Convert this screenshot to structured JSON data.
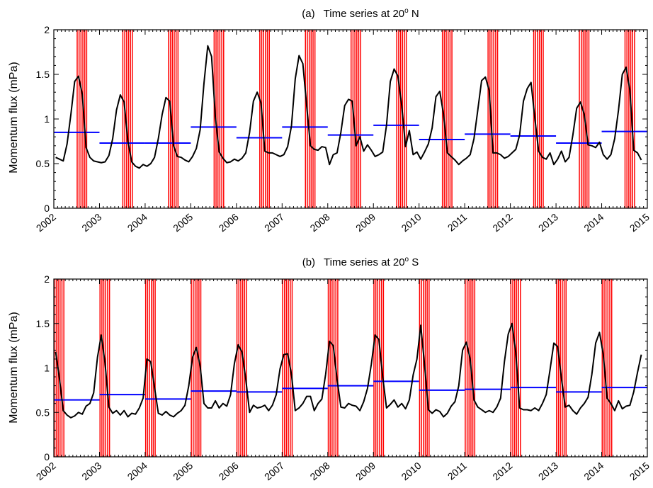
{
  "chart_data": [
    {
      "type": "line",
      "panel": "(a)",
      "title": "Time series at 20",
      "title_sup": "o",
      "title_suffix": " N",
      "xlabel": "",
      "ylabel": "Momentum flux (mPa)",
      "xlim": [
        2002,
        2015
      ],
      "ylim": [
        0,
        2
      ],
      "x_ticks": [
        "2002",
        "2003",
        "2004",
        "2005",
        "2006",
        "2007",
        "2008",
        "2009",
        "2010",
        "2011",
        "2012",
        "2013",
        "2014",
        "2015"
      ],
      "y_ticks": [
        "0",
        "0.5",
        "1",
        "1.5",
        "2"
      ],
      "series": [
        {
          "color": "#000000",
          "x_start": 2002.04,
          "x_step": 0.0833,
          "values": [
            0.57,
            0.55,
            0.53,
            0.72,
            1.05,
            1.42,
            1.48,
            1.28,
            0.68,
            0.57,
            0.53,
            0.52,
            0.51,
            0.52,
            0.59,
            0.78,
            1.1,
            1.27,
            1.19,
            0.75,
            0.52,
            0.47,
            0.45,
            0.49,
            0.47,
            0.5,
            0.57,
            0.78,
            1.05,
            1.24,
            1.2,
            0.7,
            0.58,
            0.57,
            0.54,
            0.52,
            0.58,
            0.67,
            0.88,
            1.4,
            1.82,
            1.7,
            1.02,
            0.63,
            0.56,
            0.51,
            0.52,
            0.55,
            0.53,
            0.56,
            0.62,
            0.85,
            1.2,
            1.3,
            1.18,
            0.64,
            0.62,
            0.62,
            0.6,
            0.58,
            0.6,
            0.69,
            0.92,
            1.45,
            1.71,
            1.62,
            1.15,
            0.7,
            0.66,
            0.65,
            0.69,
            0.68,
            0.49,
            0.6,
            0.62,
            0.85,
            1.15,
            1.22,
            1.2,
            0.7,
            0.8,
            0.64,
            0.71,
            0.65,
            0.58,
            0.6,
            0.63,
            0.93,
            1.42,
            1.56,
            1.48,
            1.15,
            0.69,
            0.87,
            0.6,
            0.63,
            0.55,
            0.63,
            0.72,
            0.9,
            1.25,
            1.31,
            1.05,
            0.62,
            0.58,
            0.54,
            0.49,
            0.53,
            0.56,
            0.6,
            0.78,
            1.1,
            1.43,
            1.47,
            1.32,
            0.62,
            0.62,
            0.6,
            0.56,
            0.58,
            0.62,
            0.66,
            0.82,
            1.2,
            1.34,
            1.41,
            1.01,
            0.64,
            0.57,
            0.55,
            0.62,
            0.49,
            0.55,
            0.64,
            0.52,
            0.57,
            0.82,
            1.12,
            1.19,
            1.05,
            0.71,
            0.7,
            0.68,
            0.74,
            0.6,
            0.55,
            0.6,
            0.78,
            1.1,
            1.5,
            1.58,
            1.32,
            0.65,
            0.62,
            0.54
          ]
        }
      ],
      "annual_means": [
        {
          "year": 2002,
          "value": 0.85
        },
        {
          "year": 2003,
          "value": 0.73
        },
        {
          "year": 2004,
          "value": 0.73
        },
        {
          "year": 2005,
          "value": 0.91
        },
        {
          "year": 2006,
          "value": 0.79
        },
        {
          "year": 2007,
          "value": 0.91
        },
        {
          "year": 2008,
          "value": 0.82
        },
        {
          "year": 2009,
          "value": 0.93
        },
        {
          "year": 2010,
          "value": 0.77
        },
        {
          "year": 2011,
          "value": 0.83
        },
        {
          "year": 2012,
          "value": 0.81
        },
        {
          "year": 2013,
          "value": 0.73
        },
        {
          "year": 2014,
          "value": 0.86
        }
      ],
      "annual_mean_color": "#0000ff",
      "shaded_months": [
        6,
        7,
        8
      ],
      "shade_color": "#ff0000"
    },
    {
      "type": "line",
      "panel": "(b)",
      "title": "Time series at 20",
      "title_sup": "o",
      "title_suffix": " S",
      "xlabel": "",
      "ylabel": "Momentum flux (mPa)",
      "xlim": [
        2002,
        2015
      ],
      "ylim": [
        0,
        2
      ],
      "x_ticks": [
        "2002",
        "2003",
        "2004",
        "2005",
        "2006",
        "2007",
        "2008",
        "2009",
        "2010",
        "2011",
        "2012",
        "2013",
        "2014",
        "2015"
      ],
      "y_ticks": [
        "0",
        "0.5",
        "1",
        "1.5",
        "2"
      ],
      "series": [
        {
          "color": "#000000",
          "x_start": 2002.04,
          "x_step": 0.0833,
          "values": [
            1.18,
            0.88,
            0.52,
            0.47,
            0.44,
            0.46,
            0.5,
            0.48,
            0.57,
            0.6,
            0.72,
            1.12,
            1.37,
            1.05,
            0.56,
            0.49,
            0.52,
            0.47,
            0.52,
            0.45,
            0.49,
            0.48,
            0.55,
            0.66,
            1.1,
            1.07,
            0.78,
            0.49,
            0.47,
            0.51,
            0.47,
            0.45,
            0.49,
            0.52,
            0.58,
            0.8,
            1.12,
            1.23,
            1.02,
            0.6,
            0.55,
            0.55,
            0.63,
            0.55,
            0.6,
            0.57,
            0.7,
            1.05,
            1.26,
            1.18,
            0.87,
            0.5,
            0.58,
            0.55,
            0.56,
            0.58,
            0.52,
            0.58,
            0.7,
            0.99,
            1.15,
            1.16,
            0.93,
            0.52,
            0.55,
            0.6,
            0.68,
            0.68,
            0.52,
            0.6,
            0.65,
            0.93,
            1.3,
            1.25,
            0.87,
            0.56,
            0.55,
            0.6,
            0.58,
            0.57,
            0.52,
            0.62,
            0.77,
            1.04,
            1.37,
            1.32,
            0.9,
            0.55,
            0.59,
            0.64,
            0.56,
            0.6,
            0.54,
            0.64,
            0.92,
            1.1,
            1.48,
            1.04,
            0.53,
            0.49,
            0.53,
            0.51,
            0.45,
            0.49,
            0.57,
            0.62,
            0.8,
            1.2,
            1.29,
            1.1,
            0.64,
            0.56,
            0.53,
            0.5,
            0.52,
            0.5,
            0.56,
            0.66,
            1.07,
            1.38,
            1.5,
            1.17,
            0.55,
            0.53,
            0.53,
            0.52,
            0.55,
            0.52,
            0.6,
            0.7,
            0.98,
            1.28,
            1.24,
            0.88,
            0.56,
            0.58,
            0.52,
            0.48,
            0.55,
            0.6,
            0.67,
            0.93,
            1.28,
            1.4,
            1.15,
            0.66,
            0.6,
            0.52,
            0.63,
            0.54,
            0.57,
            0.58,
            0.73,
            0.95,
            1.15
          ]
        }
      ],
      "annual_means": [
        {
          "year": 2002,
          "value": 0.64
        },
        {
          "year": 2003,
          "value": 0.7
        },
        {
          "year": 2004,
          "value": 0.65
        },
        {
          "year": 2005,
          "value": 0.74
        },
        {
          "year": 2006,
          "value": 0.73
        },
        {
          "year": 2007,
          "value": 0.77
        },
        {
          "year": 2008,
          "value": 0.8
        },
        {
          "year": 2009,
          "value": 0.85
        },
        {
          "year": 2010,
          "value": 0.75
        },
        {
          "year": 2011,
          "value": 0.76
        },
        {
          "year": 2012,
          "value": 0.78
        },
        {
          "year": 2013,
          "value": 0.73
        },
        {
          "year": 2014,
          "value": 0.78
        }
      ],
      "annual_mean_color": "#0000ff",
      "shaded_months": [
        0,
        1,
        2
      ],
      "shade_color": "#ff0000"
    }
  ]
}
